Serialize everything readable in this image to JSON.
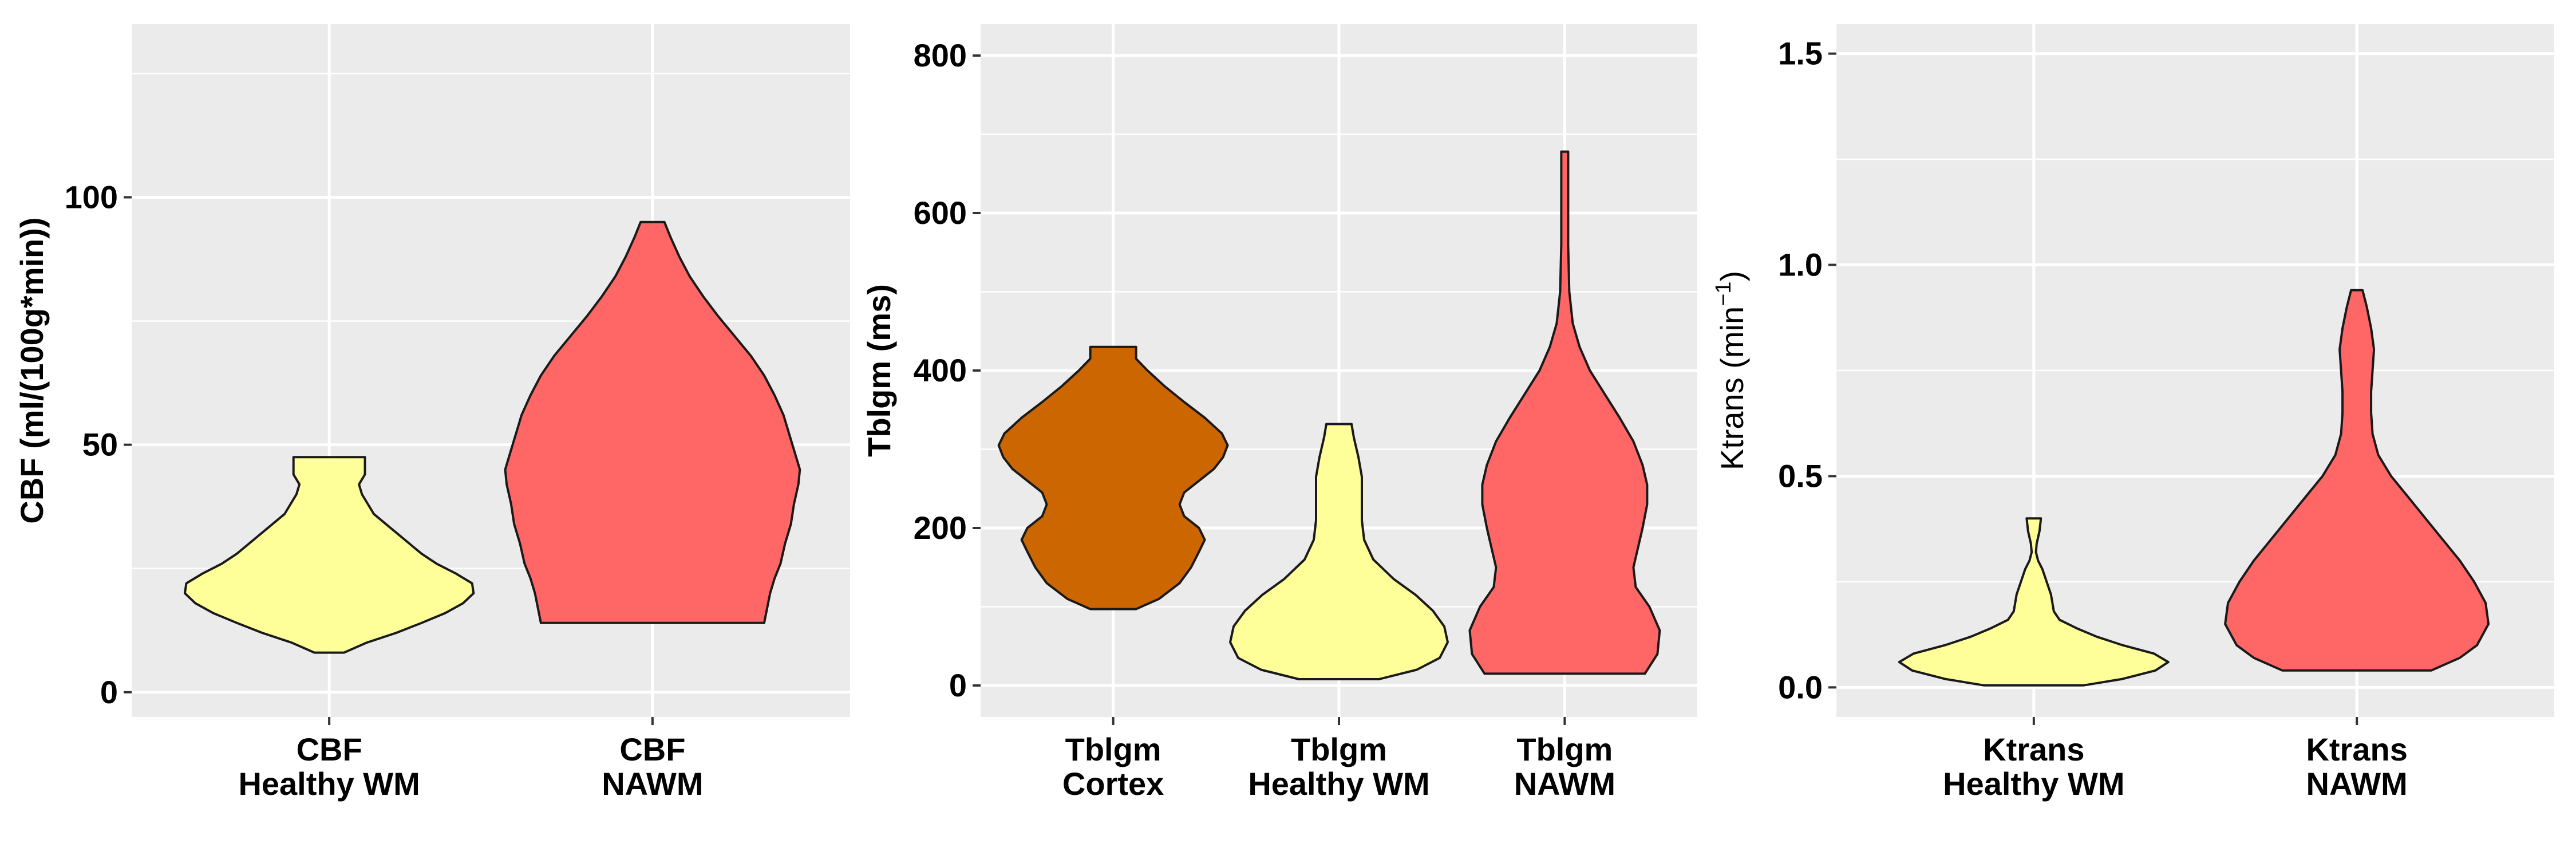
{
  "chart_data": [
    {
      "type": "violin",
      "ylabel": "CBF (ml/(100g*min))",
      "ylim": [
        -5,
        135
      ],
      "yticks": [
        0,
        50,
        100
      ],
      "categories": [
        {
          "label_line1": "CBF",
          "label_line2": "Healthy WM",
          "color": "#FFFF99",
          "min": 8,
          "max": 47.5,
          "profile": [
            [
              8,
              0.1
            ],
            [
              10,
              0.25
            ],
            [
              12,
              0.45
            ],
            [
              14,
              0.62
            ],
            [
              16,
              0.78
            ],
            [
              18,
              0.9
            ],
            [
              20,
              0.97
            ],
            [
              22,
              0.96
            ],
            [
              24,
              0.85
            ],
            [
              26,
              0.72
            ],
            [
              28,
              0.62
            ],
            [
              30,
              0.54
            ],
            [
              32,
              0.46
            ],
            [
              34,
              0.38
            ],
            [
              36,
              0.3
            ],
            [
              38,
              0.26
            ],
            [
              40,
              0.22
            ],
            [
              42,
              0.2
            ],
            [
              44,
              0.24
            ],
            [
              46,
              0.24
            ],
            [
              47.5,
              0.24
            ]
          ]
        },
        {
          "label_line1": "CBF",
          "label_line2": "NAWM",
          "color": "#FF6666",
          "min": 14,
          "max": 95,
          "profile": [
            [
              14,
              0.75
            ],
            [
              17,
              0.77
            ],
            [
              20,
              0.79
            ],
            [
              23,
              0.82
            ],
            [
              26,
              0.86
            ],
            [
              30,
              0.89
            ],
            [
              34,
              0.93
            ],
            [
              38,
              0.95
            ],
            [
              42,
              0.98
            ],
            [
              45,
              0.99
            ],
            [
              48,
              0.96
            ],
            [
              52,
              0.92
            ],
            [
              56,
              0.88
            ],
            [
              60,
              0.82
            ],
            [
              64,
              0.75
            ],
            [
              68,
              0.66
            ],
            [
              72,
              0.55
            ],
            [
              76,
              0.44
            ],
            [
              80,
              0.34
            ],
            [
              84,
              0.25
            ],
            [
              88,
              0.18
            ],
            [
              92,
              0.12
            ],
            [
              95,
              0.08
            ]
          ]
        }
      ]
    },
    {
      "type": "violin",
      "ylabel": "Tblgm (ms)",
      "ylim": [
        -40,
        840
      ],
      "yticks": [
        0,
        200,
        400,
        600,
        800
      ],
      "categories": [
        {
          "label_line1": "Tblgm",
          "label_line2": "Cortex",
          "color": "#CC6600",
          "min": 97,
          "max": 430,
          "profile": [
            [
              97,
              0.2
            ],
            [
              110,
              0.4
            ],
            [
              130,
              0.58
            ],
            [
              150,
              0.68
            ],
            [
              170,
              0.75
            ],
            [
              185,
              0.8
            ],
            [
              200,
              0.75
            ],
            [
              215,
              0.62
            ],
            [
              230,
              0.58
            ],
            [
              245,
              0.62
            ],
            [
              260,
              0.75
            ],
            [
              275,
              0.88
            ],
            [
              290,
              0.96
            ],
            [
              305,
              1.0
            ],
            [
              320,
              0.95
            ],
            [
              340,
              0.8
            ],
            [
              360,
              0.62
            ],
            [
              380,
              0.45
            ],
            [
              400,
              0.3
            ],
            [
              415,
              0.2
            ],
            [
              430,
              0.2
            ]
          ]
        },
        {
          "label_line1": "Tblgm",
          "label_line2": "Healthy WM",
          "color": "#FFFF99",
          "min": 8,
          "max": 332,
          "profile": [
            [
              8,
              0.35
            ],
            [
              20,
              0.68
            ],
            [
              35,
              0.88
            ],
            [
              55,
              0.95
            ],
            [
              75,
              0.92
            ],
            [
              95,
              0.82
            ],
            [
              115,
              0.67
            ],
            [
              135,
              0.48
            ],
            [
              160,
              0.3
            ],
            [
              185,
              0.22
            ],
            [
              210,
              0.2
            ],
            [
              240,
              0.2
            ],
            [
              265,
              0.2
            ],
            [
              290,
              0.17
            ],
            [
              315,
              0.13
            ],
            [
              332,
              0.11
            ]
          ]
        },
        {
          "label_line1": "Tblgm",
          "label_line2": "NAWM",
          "color": "#FF6666",
          "min": 15,
          "max": 678,
          "profile": [
            [
              15,
              0.7
            ],
            [
              40,
              0.81
            ],
            [
              70,
              0.83
            ],
            [
              100,
              0.74
            ],
            [
              125,
              0.62
            ],
            [
              150,
              0.6
            ],
            [
              175,
              0.64
            ],
            [
              200,
              0.68
            ],
            [
              230,
              0.72
            ],
            [
              255,
              0.72
            ],
            [
              280,
              0.68
            ],
            [
              310,
              0.6
            ],
            [
              340,
              0.48
            ],
            [
              370,
              0.35
            ],
            [
              400,
              0.22
            ],
            [
              430,
              0.13
            ],
            [
              460,
              0.07
            ],
            [
              500,
              0.04
            ],
            [
              560,
              0.03
            ],
            [
              620,
              0.03
            ],
            [
              678,
              0.03
            ]
          ]
        }
      ]
    },
    {
      "type": "violin",
      "ylabel": "Ktrans (min",
      "ylabel_sup": "−1",
      "ylabel_end": ")",
      "ylim": [
        -0.07,
        1.57
      ],
      "yticks": [
        0.0,
        0.5,
        1.0,
        1.5
      ],
      "ytick_labels": [
        "0.0",
        "0.5",
        "1.0",
        "1.5"
      ],
      "categories": [
        {
          "label_line1": "Ktrans",
          "label_line2": "Healthy WM",
          "color": "#FFFF99",
          "min": 0.005,
          "max": 0.4,
          "profile": [
            [
              0.005,
              0.35
            ],
            [
              0.02,
              0.62
            ],
            [
              0.04,
              0.85
            ],
            [
              0.06,
              0.94
            ],
            [
              0.08,
              0.84
            ],
            [
              0.1,
              0.62
            ],
            [
              0.12,
              0.44
            ],
            [
              0.14,
              0.3
            ],
            [
              0.16,
              0.18
            ],
            [
              0.18,
              0.14
            ],
            [
              0.2,
              0.13
            ],
            [
              0.22,
              0.12
            ],
            [
              0.24,
              0.1
            ],
            [
              0.26,
              0.08
            ],
            [
              0.28,
              0.06
            ],
            [
              0.3,
              0.03
            ],
            [
              0.32,
              0.015
            ],
            [
              0.34,
              0.02
            ],
            [
              0.37,
              0.04
            ],
            [
              0.4,
              0.05
            ]
          ]
        },
        {
          "label_line1": "Ktrans",
          "label_line2": "NAWM",
          "color": "#FF6666",
          "min": 0.04,
          "max": 0.94,
          "profile": [
            [
              0.04,
              0.52
            ],
            [
              0.07,
              0.72
            ],
            [
              0.1,
              0.84
            ],
            [
              0.15,
              0.92
            ],
            [
              0.2,
              0.9
            ],
            [
              0.25,
              0.82
            ],
            [
              0.3,
              0.72
            ],
            [
              0.35,
              0.6
            ],
            [
              0.4,
              0.48
            ],
            [
              0.45,
              0.36
            ],
            [
              0.5,
              0.24
            ],
            [
              0.55,
              0.15
            ],
            [
              0.6,
              0.11
            ],
            [
              0.65,
              0.1
            ],
            [
              0.7,
              0.1
            ],
            [
              0.75,
              0.11
            ],
            [
              0.8,
              0.12
            ],
            [
              0.85,
              0.1
            ],
            [
              0.9,
              0.07
            ],
            [
              0.94,
              0.04
            ]
          ]
        }
      ]
    }
  ]
}
